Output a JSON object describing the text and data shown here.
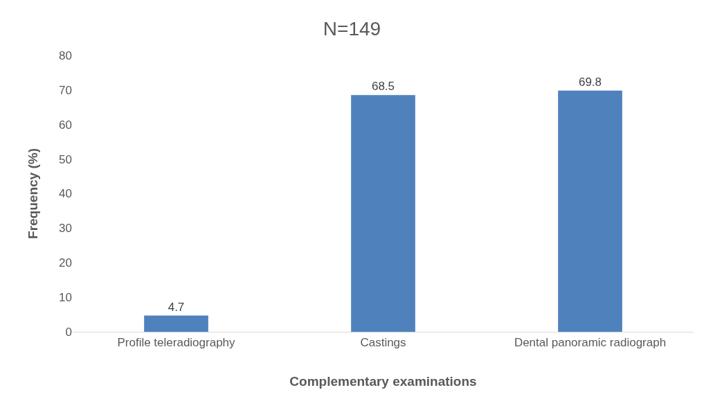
{
  "chart_data": {
    "type": "bar",
    "title": "N=149",
    "xlabel": "Complementary examinations",
    "ylabel": "Frequency (%)",
    "categories": [
      "Profile teleradiography",
      "Castings",
      "Dental panoramic radiograph"
    ],
    "values": [
      4.7,
      68.5,
      69.8
    ],
    "color": "#4f81bd",
    "ylim": [
      0,
      80
    ],
    "yticks": [
      0,
      10,
      20,
      30,
      40,
      50,
      60,
      70,
      80
    ],
    "grid": false,
    "legend": false,
    "data_labels": true
  }
}
